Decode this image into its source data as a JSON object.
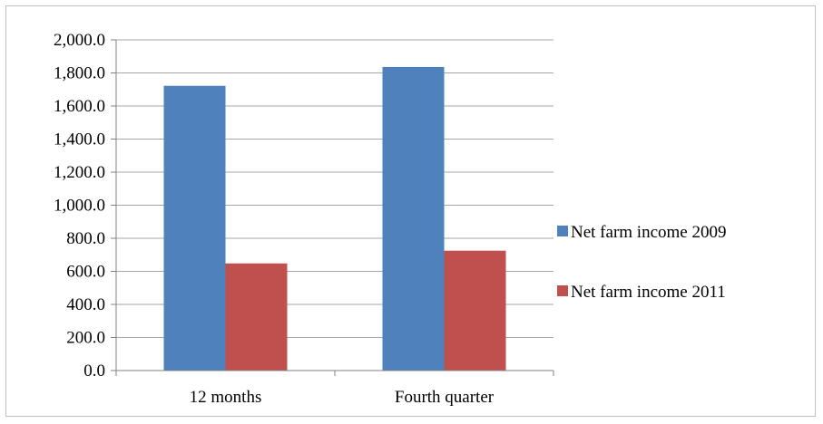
{
  "chart_data": {
    "type": "bar",
    "categories": [
      "12 months",
      "Fourth quarter"
    ],
    "series": [
      {
        "name": "Net farm income 2009",
        "color": "#4f81bd",
        "values": [
          1722,
          1836
        ]
      },
      {
        "name": "Net farm income 2011",
        "color": "#c0504d",
        "values": [
          648,
          725
        ]
      }
    ],
    "title": "",
    "xlabel": "",
    "ylabel": "",
    "ylim": [
      0,
      2000
    ],
    "yticks": [
      "0.0",
      "200.0",
      "400.0",
      "600.0",
      "800.0",
      "1,000.0",
      "1,200.0",
      "1,400.0",
      "1,600.0",
      "1,800.0",
      "2,000.0"
    ],
    "grid": true,
    "legend_position": "right"
  }
}
